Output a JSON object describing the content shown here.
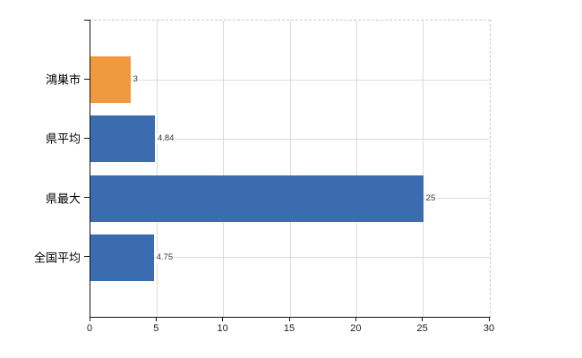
{
  "chart_data": {
    "type": "bar",
    "orientation": "horizontal",
    "title": "",
    "categories": [
      "鴻巣市",
      "県平均",
      "県最大",
      "全国平均"
    ],
    "series": [
      {
        "name": "",
        "values": [
          3,
          4.84,
          25,
          4.75
        ]
      }
    ],
    "value_labels": [
      "3",
      "4.84",
      "25",
      "4.75"
    ],
    "bar_colors": [
      "#f0993e",
      "#3b6cb0",
      "#3b6cb0",
      "#3b6cb0"
    ],
    "xlim": [
      0,
      30
    ],
    "x_ticks": [
      0,
      5,
      10,
      15,
      20,
      25,
      30
    ],
    "x_tick_labels": [
      "0",
      "5",
      "10",
      "15",
      "20",
      "25",
      "30"
    ],
    "xlabel": "",
    "ylabel": "",
    "grid": "on",
    "legend": "none"
  },
  "colors": {
    "orange_bar": "#f0993e",
    "blue_bar": "#3b6cb0",
    "gridline": "#dcdcd4",
    "axis": "#161616",
    "dashed_border": "#c9c9c9",
    "value_text": "#333333",
    "background": "#ffffff"
  }
}
